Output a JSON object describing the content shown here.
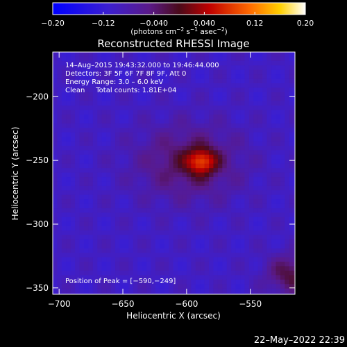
{
  "chart_data": {
    "type": "heatmap",
    "title": "Reconstructed RHESSI Image",
    "xlabel": "Heliocentric X (arcsec)",
    "ylabel": "Heliocentric Y (arcsec)",
    "xlim": [
      -705,
      -515
    ],
    "ylim": [
      -355,
      -165
    ],
    "x_ticks": [
      -700,
      -650,
      -600,
      -550
    ],
    "x_tick_labels": [
      "−700",
      "−650",
      "−600",
      "−550"
    ],
    "y_ticks": [
      -200,
      -250,
      -300,
      -350
    ],
    "y_tick_labels": [
      "−200",
      "−250",
      "−300",
      "−350"
    ],
    "colorbar": {
      "range": [
        -0.2,
        0.2
      ],
      "ticks": [
        -0.2,
        -0.12,
        -0.04,
        0.04,
        0.12,
        0.2
      ],
      "tick_labels": [
        "−0.20",
        "−0.12",
        "−0.040",
        "0.040",
        "0.12",
        "0.20"
      ],
      "units_text": "(photons cm",
      "units_exp1": "−2",
      "units_mid": " s",
      "units_exp2": "−1",
      "units_mid2": " asec",
      "units_exp3": "−2",
      "units_close": ")"
    },
    "annotations": [
      "14–Aug–2015 19:43:32.000 to 19:46:44.000",
      "Detectors: 3F 5F 6F 7F 8F 9F, Att 0",
      "Energy Range: 3.0 – 6.0 keV",
      "Clean     Total counts: 1.81E+04"
    ],
    "peak_label": "Position of Peak = [−590,−249]",
    "peak": {
      "x": -590,
      "y": -249,
      "value": 0.2
    },
    "sources": [
      {
        "x": -590,
        "y": -249,
        "sx": 8,
        "sy": 7,
        "amp": 0.13
      },
      {
        "x": -600,
        "y": -250,
        "sx": 28,
        "sy": 20,
        "amp": 0.075
      },
      {
        "x": -520,
        "y": -338,
        "sx": 13,
        "sy": 11,
        "amp": 0.085
      }
    ],
    "background": -0.1
  },
  "footer": {
    "timestamp": "22–May–2022 22:39"
  }
}
